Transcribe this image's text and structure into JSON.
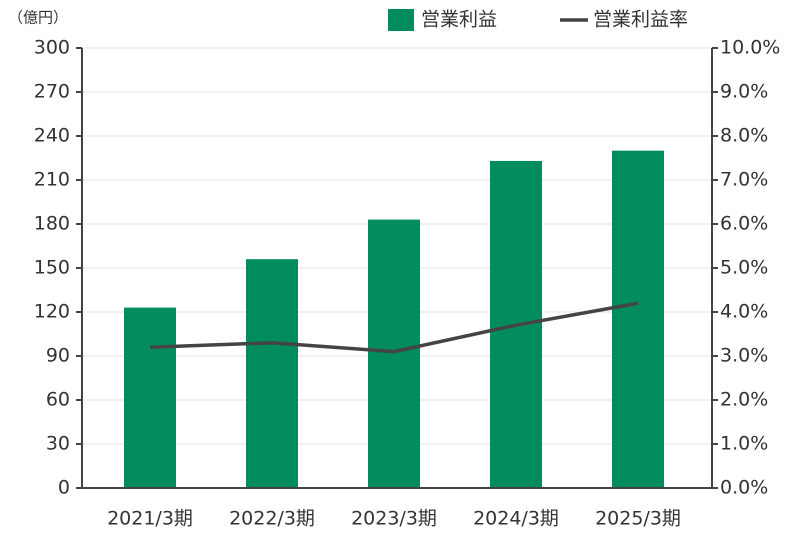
{
  "chart_data": {
    "type": "bar-line",
    "y_axis_label": "（億円）",
    "categories": [
      "2021/3期",
      "2022/3期",
      "2023/3期",
      "2024/3期",
      "2025/3期"
    ],
    "series": [
      {
        "name": "営業利益",
        "type": "bar",
        "color": "#008c5f",
        "values": [
          123,
          156,
          183,
          223,
          230
        ]
      },
      {
        "name": "営業利益率",
        "type": "line",
        "axis": "y2",
        "color": "#444444",
        "values": [
          3.2,
          3.3,
          3.1,
          3.7,
          4.2
        ]
      }
    ],
    "ylim": [
      0,
      300
    ],
    "yticks": [
      0,
      30,
      60,
      90,
      120,
      150,
      180,
      210,
      240,
      270,
      300
    ],
    "y2lim": [
      0,
      10
    ],
    "y2ticks": [
      {
        "value": 0,
        "label": "0.0%"
      },
      {
        "value": 1,
        "label": "1.0%"
      },
      {
        "value": 2,
        "label": "2.0%"
      },
      {
        "value": 3,
        "label": "3.0%"
      },
      {
        "value": 4,
        "label": "4.0%"
      },
      {
        "value": 5,
        "label": "5.0%"
      },
      {
        "value": 6,
        "label": "6.0%"
      },
      {
        "value": 7,
        "label": "7.0%"
      },
      {
        "value": 8,
        "label": "8.0%"
      },
      {
        "value": 9,
        "label": "9.0%"
      },
      {
        "value": 10,
        "label": "10.0%"
      }
    ],
    "grid": true,
    "legend": "top"
  }
}
